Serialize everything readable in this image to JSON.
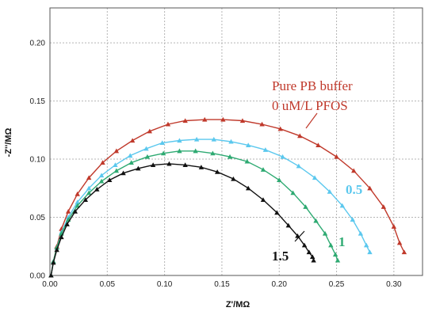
{
  "chart_data": {
    "type": "scatter",
    "xlabel": "Z'/MΩ",
    "ylabel": "-Z''/MΩ",
    "xlim": [
      0,
      0.325
    ],
    "ylim": [
      0,
      0.23
    ],
    "x_ticks": [
      "0.00",
      "0.05",
      "0.10",
      "0.15",
      "0.20",
      "0.25",
      "0.30"
    ],
    "y_ticks": [
      "0.00",
      "0.05",
      "0.10",
      "0.15",
      "0.20"
    ],
    "grid": true,
    "series": [
      {
        "name": "Pure PB buffer 0 uM/L PFOS",
        "color": "#c0392b",
        "marker": "triangle",
        "x": [
          0.001,
          0.003,
          0.006,
          0.01,
          0.016,
          0.024,
          0.034,
          0.046,
          0.058,
          0.072,
          0.087,
          0.103,
          0.118,
          0.135,
          0.151,
          0.168,
          0.185,
          0.201,
          0.218,
          0.234,
          0.25,
          0.265,
          0.279,
          0.291,
          0.3,
          0.305,
          0.309
        ],
        "y": [
          0.0,
          0.012,
          0.025,
          0.04,
          0.055,
          0.07,
          0.084,
          0.097,
          0.107,
          0.116,
          0.124,
          0.13,
          0.133,
          0.134,
          0.134,
          0.133,
          0.13,
          0.126,
          0.12,
          0.112,
          0.102,
          0.09,
          0.075,
          0.059,
          0.042,
          0.028,
          0.02
        ]
      },
      {
        "name": "0.5",
        "color": "#5bc8ee",
        "marker": "triangle",
        "x": [
          0.001,
          0.003,
          0.006,
          0.01,
          0.016,
          0.024,
          0.034,
          0.045,
          0.057,
          0.07,
          0.084,
          0.098,
          0.113,
          0.128,
          0.143,
          0.158,
          0.173,
          0.188,
          0.203,
          0.217,
          0.231,
          0.244,
          0.255,
          0.264,
          0.271,
          0.276,
          0.279
        ],
        "y": [
          0.0,
          0.012,
          0.024,
          0.037,
          0.05,
          0.063,
          0.075,
          0.086,
          0.095,
          0.103,
          0.109,
          0.114,
          0.116,
          0.117,
          0.117,
          0.115,
          0.112,
          0.108,
          0.102,
          0.094,
          0.084,
          0.072,
          0.06,
          0.048,
          0.036,
          0.026,
          0.02
        ]
      },
      {
        "name": "1",
        "color": "#2eaa72",
        "marker": "triangle",
        "x": [
          0.001,
          0.003,
          0.006,
          0.01,
          0.016,
          0.024,
          0.034,
          0.045,
          0.058,
          0.071,
          0.085,
          0.099,
          0.113,
          0.127,
          0.142,
          0.157,
          0.172,
          0.186,
          0.2,
          0.212,
          0.223,
          0.232,
          0.24,
          0.245,
          0.249,
          0.251
        ],
        "y": [
          0.0,
          0.012,
          0.024,
          0.036,
          0.048,
          0.06,
          0.071,
          0.081,
          0.09,
          0.097,
          0.102,
          0.105,
          0.107,
          0.107,
          0.105,
          0.102,
          0.098,
          0.091,
          0.082,
          0.071,
          0.059,
          0.047,
          0.036,
          0.026,
          0.018,
          0.013
        ]
      },
      {
        "name": "1.5",
        "color": "#111111",
        "marker": "triangle",
        "x": [
          0.001,
          0.003,
          0.006,
          0.01,
          0.015,
          0.022,
          0.031,
          0.041,
          0.052,
          0.064,
          0.077,
          0.09,
          0.104,
          0.118,
          0.132,
          0.146,
          0.16,
          0.173,
          0.186,
          0.198,
          0.208,
          0.216,
          0.222,
          0.226,
          0.229,
          0.23
        ],
        "y": [
          0.0,
          0.011,
          0.022,
          0.033,
          0.044,
          0.055,
          0.065,
          0.074,
          0.082,
          0.088,
          0.092,
          0.095,
          0.096,
          0.095,
          0.093,
          0.089,
          0.083,
          0.075,
          0.065,
          0.054,
          0.043,
          0.034,
          0.026,
          0.02,
          0.016,
          0.013
        ]
      }
    ],
    "annotations": [
      {
        "text": "Pure PB buffer",
        "color": "#c0392b"
      },
      {
        "text": "0 uM/L PFOS",
        "color": "#c0392b"
      },
      {
        "text": "0.5",
        "color": "#5bc8ee"
      },
      {
        "text": "1",
        "color": "#2eaa72"
      },
      {
        "text": "1.5",
        "color": "#111111"
      }
    ]
  }
}
